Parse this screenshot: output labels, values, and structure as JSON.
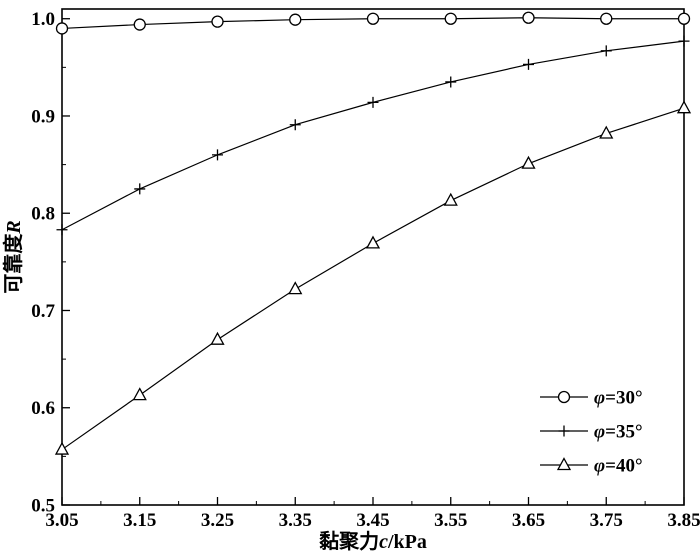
{
  "figure": {
    "background": "#ffffff",
    "axis_color": "#000000",
    "line_color": "#000000"
  },
  "chart_data": {
    "type": "line",
    "title": "",
    "xlabel": "黏聚力c/kPa",
    "ylabel": "可靠度R",
    "x": [
      3.05,
      3.15,
      3.25,
      3.35,
      3.45,
      3.55,
      3.65,
      3.75,
      3.85
    ],
    "xlim": [
      3.05,
      3.85
    ],
    "ylim": [
      0.5,
      1.01
    ],
    "xticks": [
      3.05,
      3.15,
      3.25,
      3.35,
      3.45,
      3.55,
      3.65,
      3.75,
      3.85
    ],
    "xtick_labels": [
      "3.05",
      "3.15",
      "3.25",
      "3.35",
      "3.45",
      "3.55",
      "3.65",
      "3.75",
      "3.85"
    ],
    "x_minor_ticks": [
      3.1,
      3.2,
      3.3,
      3.4,
      3.5,
      3.6,
      3.7,
      3.8
    ],
    "yticks": [
      0.5,
      0.6,
      0.7,
      0.8,
      0.9,
      1.0
    ],
    "ytick_labels": [
      "0.5",
      "0.6",
      "0.7",
      "0.8",
      "0.9",
      "1.0"
    ],
    "y_minor_ticks": [
      0.55,
      0.65,
      0.75,
      0.85,
      0.95
    ],
    "grid": false,
    "legend_position": "bottom-right",
    "series": [
      {
        "name": "φ=30°",
        "marker": "circle",
        "values": [
          0.99,
          0.994,
          0.997,
          0.999,
          1.0,
          1.0,
          1.001,
          1.0,
          1.0
        ]
      },
      {
        "name": "φ=35°",
        "marker": "plus",
        "values": [
          0.783,
          0.825,
          0.86,
          0.891,
          0.914,
          0.935,
          0.953,
          0.967,
          0.977
        ]
      },
      {
        "name": "φ=40°",
        "marker": "triangle",
        "values": [
          0.557,
          0.613,
          0.67,
          0.722,
          0.769,
          0.813,
          0.851,
          0.882,
          0.908
        ]
      }
    ]
  }
}
